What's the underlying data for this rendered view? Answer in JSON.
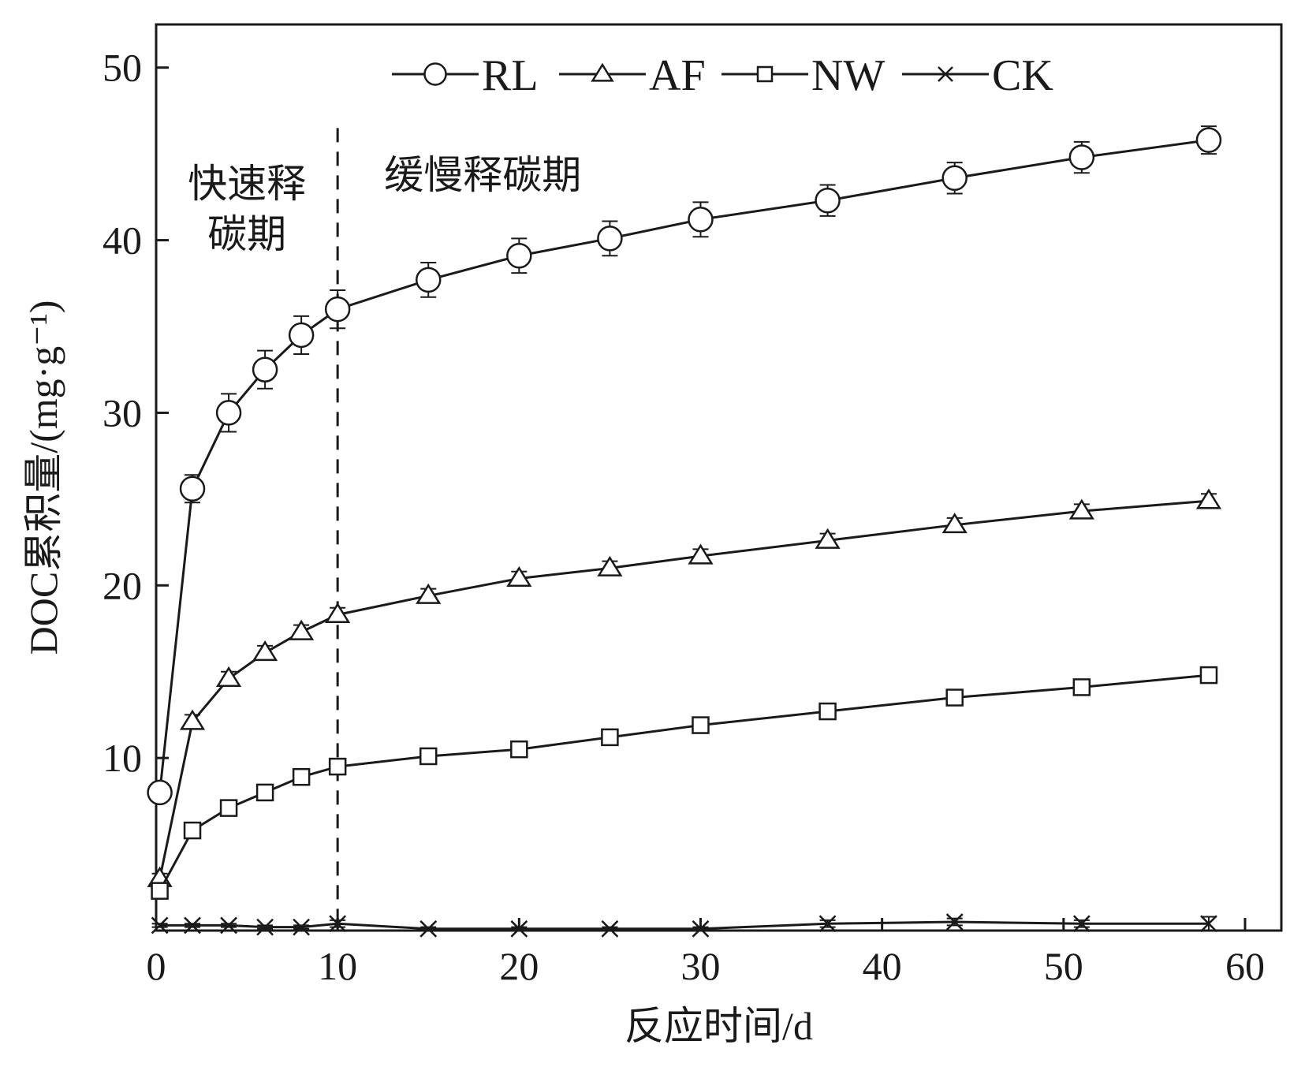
{
  "chart_data": {
    "type": "line",
    "xlabel": "反应时间/d",
    "ylabel": "DOC累积量/(mg·g⁻¹)",
    "xlim": [
      0,
      62
    ],
    "ylim": [
      0,
      52.5
    ],
    "x_ticks": [
      0,
      10,
      20,
      30,
      40,
      50,
      60
    ],
    "y_ticks": [
      10,
      20,
      30,
      40,
      50
    ],
    "x_tick_labels": [
      "0",
      "10",
      "20",
      "30",
      "40",
      "50",
      "60"
    ],
    "y_tick_labels": [
      "10",
      "20",
      "30",
      "40",
      "50"
    ],
    "grid": false,
    "legend_position": "top",
    "legend_title": "",
    "phase_divider_x": 10,
    "annotations": [
      {
        "text_lines": [
          "快速释",
          "碳期"
        ],
        "x": 5,
        "y": 42.5
      },
      {
        "text_lines": [
          "缓慢释碳期"
        ],
        "x": 18,
        "y": 43
      }
    ],
    "series": [
      {
        "name": "RL",
        "marker": "circle",
        "x": [
          0.2,
          2,
          4,
          6,
          8,
          10,
          15,
          20,
          25,
          30,
          37,
          44,
          51,
          58
        ],
        "y": [
          8.0,
          25.6,
          30.0,
          32.5,
          34.5,
          36.0,
          37.7,
          39.1,
          40.1,
          41.2,
          42.3,
          43.6,
          44.8,
          45.8
        ],
        "err": [
          0.5,
          0.8,
          1.1,
          1.1,
          1.1,
          1.1,
          1.0,
          1.0,
          1.0,
          1.0,
          0.9,
          0.9,
          0.9,
          0.8
        ]
      },
      {
        "name": "AF",
        "marker": "triangle",
        "x": [
          0.2,
          2,
          4,
          6,
          8,
          10,
          15,
          20,
          25,
          30,
          37,
          44,
          51,
          58
        ],
        "y": [
          3.0,
          12.1,
          14.6,
          16.1,
          17.3,
          18.3,
          19.4,
          20.4,
          21.0,
          21.7,
          22.6,
          23.5,
          24.3,
          24.9
        ],
        "err": [
          0.3,
          0.4,
          0.4,
          0.4,
          0.4,
          0.4,
          0.4,
          0.4,
          0.4,
          0.4,
          0.4,
          0.4,
          0.4,
          0.4
        ]
      },
      {
        "name": "NW",
        "marker": "square",
        "x": [
          0.2,
          2,
          4,
          6,
          8,
          10,
          15,
          20,
          25,
          30,
          37,
          44,
          51,
          58
        ],
        "y": [
          2.3,
          5.8,
          7.1,
          8.0,
          8.9,
          9.5,
          10.1,
          10.5,
          11.2,
          11.9,
          12.7,
          13.5,
          14.1,
          14.8
        ],
        "err": [
          0.3,
          0.4,
          0.4,
          0.4,
          0.4,
          0.4,
          0.4,
          0.4,
          0.4,
          0.4,
          0.4,
          0.4,
          0.4,
          0.4
        ]
      },
      {
        "name": "CK",
        "marker": "x",
        "x": [
          0.2,
          2,
          4,
          6,
          8,
          10,
          15,
          20,
          25,
          30,
          37,
          44,
          51,
          58
        ],
        "y": [
          0.3,
          0.3,
          0.3,
          0.2,
          0.2,
          0.4,
          0.1,
          0.1,
          0.1,
          0.1,
          0.4,
          0.5,
          0.4,
          0.4
        ],
        "err": [
          0.1,
          0.1,
          0.1,
          0.1,
          0.1,
          0.2,
          0.1,
          0.1,
          0.1,
          0.1,
          0.2,
          0.2,
          0.2,
          0.4
        ]
      }
    ]
  },
  "colors": {
    "ink": "#1a1a1a",
    "marker_fill": "#ffffff",
    "background": "#ffffff"
  }
}
